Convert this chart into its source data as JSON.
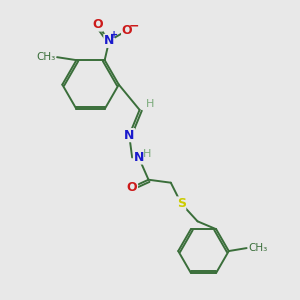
{
  "bg_color": "#e8e8e8",
  "bond_color": "#3a6e3a",
  "N_color": "#1a1acc",
  "O_color": "#cc1a1a",
  "S_color": "#cccc00",
  "H_color": "#7aaa7a",
  "fig_size": [
    3.0,
    3.0
  ],
  "dpi": 100,
  "xlim": [
    0,
    10
  ],
  "ylim": [
    0,
    10
  ]
}
